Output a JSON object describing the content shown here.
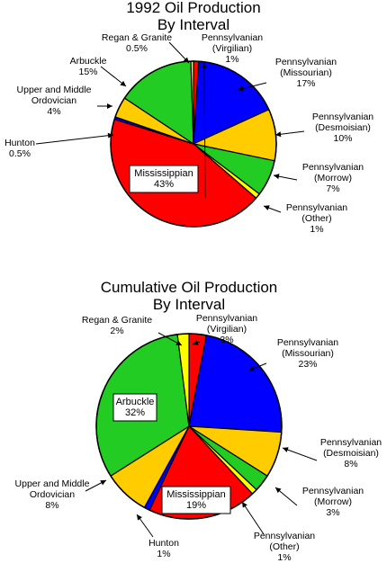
{
  "chart_data": [
    {
      "type": "pie",
      "title_lines": [
        "1992 Oil Production",
        "By Interval"
      ],
      "slices": [
        {
          "label_lines": [
            "Pennsylvanian",
            "(Virgilian)"
          ],
          "value_text": "1%",
          "value": 1,
          "color": "#ff0000"
        },
        {
          "label_lines": [
            "Pennsylvanian",
            "(Missourian)"
          ],
          "value_text": "17%",
          "value": 17,
          "color": "#0000ff"
        },
        {
          "label_lines": [
            "Pennsylvanian",
            "(Desmoisian)"
          ],
          "value_text": "10%",
          "value": 10,
          "color": "#ffcc00"
        },
        {
          "label_lines": [
            "Pennsylvanian",
            "(Morrow)"
          ],
          "value_text": "7%",
          "value": 7,
          "color": "#22cc22"
        },
        {
          "label_lines": [
            "Pennsylvanian",
            "(Other)"
          ],
          "value_text": "1%",
          "value": 1,
          "color": "#ffff00"
        },
        {
          "label_lines": [
            "Mississippian"
          ],
          "value_text": "43%",
          "value": 43,
          "color": "#ff0000"
        },
        {
          "label_lines": [
            "Hunton"
          ],
          "value_text": "0.5%",
          "value": 0.5,
          "color": "#0000ff"
        },
        {
          "label_lines": [
            "Upper and Middle",
            "Ordovician"
          ],
          "value_text": "4%",
          "value": 4,
          "color": "#ffcc00"
        },
        {
          "label_lines": [
            "Arbuckle"
          ],
          "value_text": "15%",
          "value": 15,
          "color": "#22cc22"
        },
        {
          "label_lines": [
            "Regan & Granite"
          ],
          "value_text": "0.5%",
          "value": 0.5,
          "color": "#ffff00"
        }
      ]
    },
    {
      "type": "pie",
      "title_lines": [
        "Cumulative Oil Production",
        "By Interval"
      ],
      "slices": [
        {
          "label_lines": [
            "Pennsylvanian",
            "(Virgilian)"
          ],
          "value_text": "3%",
          "value": 3,
          "color": "#ff0000"
        },
        {
          "label_lines": [
            "Pennsylvanian",
            "(Missourian)"
          ],
          "value_text": "23%",
          "value": 23,
          "color": "#0000ff"
        },
        {
          "label_lines": [
            "Pennsylvanian",
            "(Desmoisian)"
          ],
          "value_text": "8%",
          "value": 8,
          "color": "#ffcc00"
        },
        {
          "label_lines": [
            "Pennsylvanian",
            "(Morrow)"
          ],
          "value_text": "3%",
          "value": 3,
          "color": "#22cc22"
        },
        {
          "label_lines": [
            "Pennsylvanian",
            "(Other)"
          ],
          "value_text": "1%",
          "value": 1,
          "color": "#ffff00"
        },
        {
          "label_lines": [
            "Mississippian"
          ],
          "value_text": "19%",
          "value": 19,
          "color": "#ff0000"
        },
        {
          "label_lines": [
            "Hunton"
          ],
          "value_text": "1%",
          "value": 1,
          "color": "#0000ff"
        },
        {
          "label_lines": [
            "Upper and Middle",
            "Ordovician"
          ],
          "value_text": "8%",
          "value": 8,
          "color": "#ffcc00"
        },
        {
          "label_lines": [
            "Arbuckle"
          ],
          "value_text": "32%",
          "value": 32,
          "color": "#22cc22"
        },
        {
          "label_lines": [
            "Regan & Granite"
          ],
          "value_text": "2%",
          "value": 2,
          "color": "#ffff00"
        }
      ]
    }
  ]
}
